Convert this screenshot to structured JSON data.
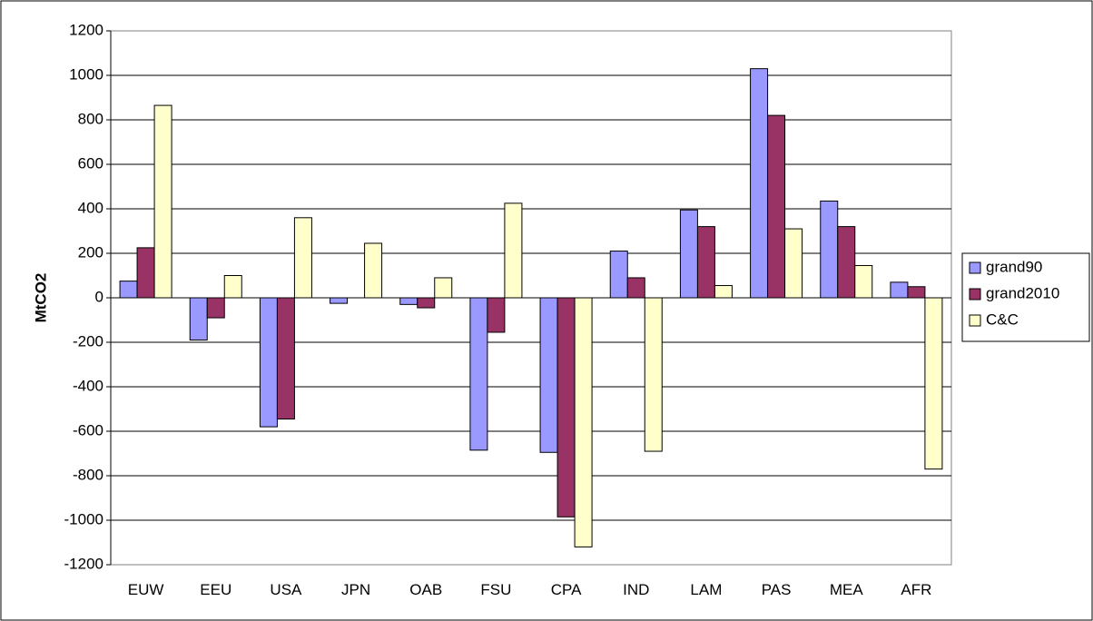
{
  "chart_data": {
    "type": "bar",
    "title": "",
    "xlabel": "",
    "ylabel": "MtCO2",
    "ylim": [
      -1200,
      1200
    ],
    "ytick_step": 200,
    "grid": true,
    "legend_position": "right",
    "categories": [
      "EUW",
      "EEU",
      "USA",
      "JPN",
      "OAB",
      "FSU",
      "CPA",
      "IND",
      "LAM",
      "PAS",
      "MEA",
      "AFR"
    ],
    "series": [
      {
        "name": "grand90",
        "color": "#9999FF",
        "values": [
          75,
          -190,
          -580,
          -25,
          -30,
          -685,
          -695,
          210,
          395,
          1030,
          435,
          70
        ]
      },
      {
        "name": "grand2010",
        "color": "#993366",
        "values": [
          225,
          -90,
          -545,
          0,
          -45,
          -155,
          -985,
          90,
          320,
          820,
          320,
          50
        ]
      },
      {
        "name": "C&C",
        "color": "#FFFFCC",
        "values": [
          865,
          100,
          360,
          245,
          90,
          425,
          -1120,
          -690,
          55,
          310,
          145,
          -770
        ]
      }
    ]
  }
}
